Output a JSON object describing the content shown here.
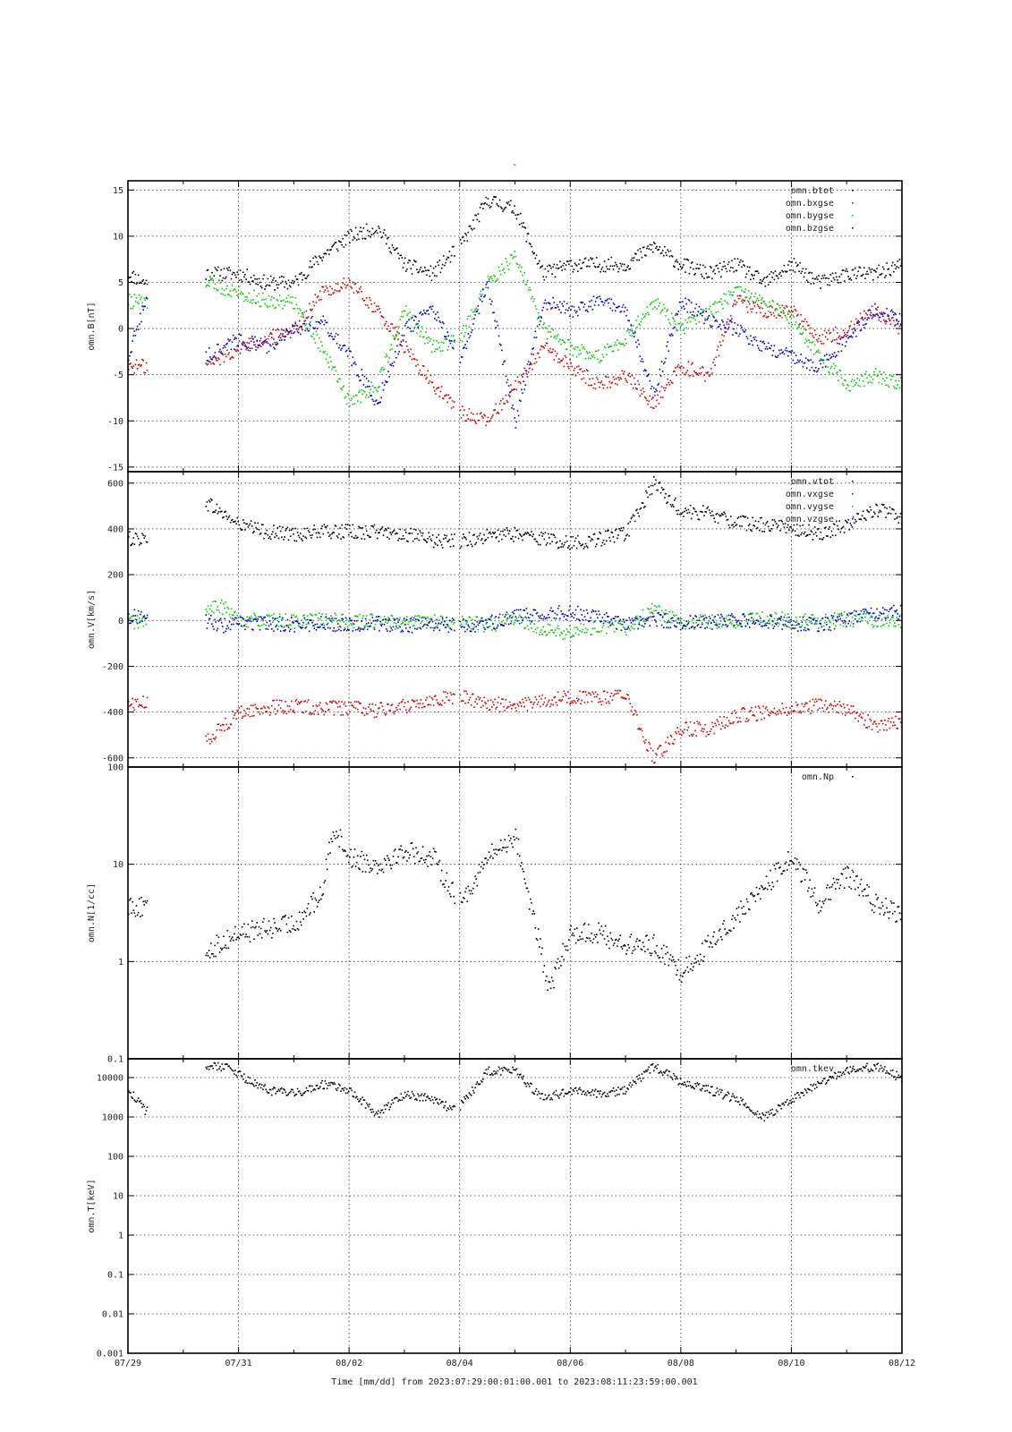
{
  "figure": {
    "title": "-",
    "xlabel": "Time [mm/dd]  from 2023:07:29:00:01:00.001  to  2023:08:11:23:59:00.001"
  },
  "chart_data": [
    {
      "type": "scatter",
      "ylabel": "omn.B[nT]",
      "xlim": [
        0,
        14
      ],
      "ylim": [
        -15.5,
        16
      ],
      "yscale": "linear",
      "yticks": [
        -15,
        -10,
        -5,
        0,
        5,
        10,
        15
      ],
      "ytick_labels": [
        "-15",
        "-10",
        "-5",
        "0",
        "5",
        "10",
        "15"
      ],
      "xticks": [
        0,
        2,
        4,
        6,
        8,
        10,
        12,
        14
      ],
      "xtick_labels": [
        "07/29",
        "07/31",
        "08/02",
        "08/04",
        "08/06",
        "08/08",
        "08/10",
        "08/12"
      ],
      "grid": true,
      "legend": "top-right",
      "data_gaps": [
        [
          0.35,
          1.4
        ],
        [
          5.9,
          6.0
        ]
      ],
      "series": [
        {
          "name": "omn.btot",
          "color": "#000000",
          "x": [
            0,
            0.3,
            1.4,
            2,
            2.5,
            3,
            3.5,
            4,
            4.5,
            5,
            5.5,
            6,
            6.5,
            7,
            7.5,
            8,
            8.5,
            9,
            9.5,
            10,
            10.5,
            11,
            11.5,
            12,
            12.5,
            13,
            13.5,
            14
          ],
          "y": [
            6,
            5,
            6,
            6,
            5,
            5,
            8,
            10,
            11,
            7,
            6,
            9,
            14,
            13,
            6,
            7,
            7,
            7,
            9,
            7,
            6,
            7,
            5,
            7,
            5,
            6,
            6,
            7
          ]
        },
        {
          "name": "omn.bxgse",
          "color": "#cc0000",
          "x": [
            0,
            0.3,
            1.4,
            2,
            2.5,
            3,
            3.5,
            4,
            4.5,
            5,
            5.5,
            6,
            6.5,
            7,
            7.5,
            8,
            8.5,
            9,
            9.5,
            10,
            10.5,
            11,
            11.5,
            12,
            12.5,
            13,
            13.5,
            14
          ],
          "y": [
            -4,
            -4,
            -4,
            -2,
            -1,
            0,
            4,
            5,
            2,
            -2,
            -6,
            -9,
            -10,
            -6,
            -2,
            -4,
            -6,
            -5,
            -8,
            -4,
            -5,
            3,
            2,
            2,
            -1,
            0,
            2,
            0
          ]
        },
        {
          "name": "omn.bygse",
          "color": "#00cc00",
          "x": [
            0,
            0.3,
            1.4,
            2,
            2.5,
            3,
            3.5,
            4,
            4.5,
            5,
            5.5,
            6,
            6.5,
            7,
            7.5,
            8,
            8.5,
            9,
            9.5,
            10,
            10.5,
            11,
            11.5,
            12,
            12.5,
            13,
            13.5,
            14
          ],
          "y": [
            3,
            3,
            5,
            4,
            3,
            3,
            -2,
            -8,
            -6,
            2,
            -2,
            -1,
            5,
            8,
            0,
            -2,
            -3,
            -1,
            3,
            0,
            2,
            4,
            3,
            1,
            -3,
            -6,
            -5,
            -6
          ]
        },
        {
          "name": "omn.bzgse",
          "color": "#0000cc",
          "x": [
            0,
            0.3,
            1.4,
            2,
            2.5,
            3,
            3.5,
            4,
            4.5,
            5,
            5.5,
            6,
            6.5,
            7,
            7.5,
            8,
            8.5,
            9,
            9.5,
            10,
            10.5,
            11,
            11.5,
            12,
            12.5,
            13,
            13.5,
            14
          ],
          "y": [
            -3,
            3,
            -3,
            -1,
            -2,
            0,
            1,
            -3,
            -8,
            0,
            2,
            -3,
            5,
            -10,
            3,
            2,
            3,
            2,
            -7,
            3,
            1,
            0,
            -2,
            -3,
            -4,
            -1,
            2,
            1
          ]
        }
      ]
    },
    {
      "type": "scatter",
      "ylabel": "omn.V[km/s]",
      "xlim": [
        0,
        14
      ],
      "ylim": [
        -640,
        650
      ],
      "yscale": "linear",
      "yticks": [
        -600,
        -400,
        -200,
        0,
        200,
        400,
        600
      ],
      "ytick_labels": [
        "-600",
        "-400",
        "-200",
        "0",
        "200",
        "400",
        "600"
      ],
      "grid": true,
      "legend": "top-right",
      "data_gaps": [
        [
          0.35,
          1.4
        ],
        [
          5.9,
          6.0
        ]
      ],
      "series": [
        {
          "name": "omn.vtot",
          "color": "#000000",
          "x": [
            0,
            0.3,
            1.4,
            1.7,
            2,
            2.5,
            3,
            3.5,
            4,
            4.5,
            5,
            5.5,
            6,
            6.5,
            7,
            7.5,
            8,
            8.5,
            9,
            9.5,
            10,
            10.5,
            11,
            11.5,
            12,
            12.5,
            13,
            13.5,
            14
          ],
          "y": [
            360,
            360,
            520,
            470,
            420,
            390,
            380,
            390,
            390,
            390,
            380,
            350,
            350,
            370,
            380,
            360,
            340,
            360,
            380,
            600,
            480,
            470,
            430,
            420,
            410,
            380,
            420,
            490,
            450
          ]
        },
        {
          "name": "omn.vxgse",
          "color": "#cc0000",
          "x": [
            0,
            0.3,
            1.4,
            1.7,
            2,
            2.5,
            3,
            3.5,
            4,
            4.5,
            5,
            5.5,
            6,
            6.5,
            7,
            7.5,
            8,
            8.5,
            9,
            9.5,
            10,
            10.5,
            11,
            11.5,
            12,
            12.5,
            13,
            13.5,
            14
          ],
          "y": [
            -360,
            -360,
            -520,
            -460,
            -400,
            -380,
            -370,
            -380,
            -380,
            -390,
            -370,
            -340,
            -330,
            -360,
            -370,
            -350,
            -330,
            -340,
            -320,
            -600,
            -470,
            -470,
            -410,
            -400,
            -380,
            -370,
            -380,
            -460,
            -440
          ]
        },
        {
          "name": "omn.vygse",
          "color": "#00cc00",
          "x": [
            0,
            0.3,
            1.4,
            1.7,
            2,
            2.5,
            3,
            3.5,
            4,
            4.5,
            5,
            5.5,
            6,
            6.5,
            7,
            7.5,
            8,
            8.5,
            9,
            9.5,
            10,
            10.5,
            11,
            11.5,
            12,
            12.5,
            13,
            13.5,
            14
          ],
          "y": [
            0,
            -5,
            60,
            60,
            10,
            0,
            0,
            5,
            0,
            0,
            -10,
            0,
            0,
            -20,
            10,
            -40,
            -50,
            -20,
            -30,
            50,
            -10,
            0,
            0,
            20,
            0,
            0,
            10,
            0,
            -10
          ]
        },
        {
          "name": "omn.vzgse",
          "color": "#0000cc",
          "x": [
            0,
            0.3,
            1.4,
            1.7,
            2,
            2.5,
            3,
            3.5,
            4,
            4.5,
            5,
            5.5,
            6,
            6.5,
            7,
            7.5,
            8,
            8.5,
            9,
            9.5,
            10,
            10.5,
            11,
            11.5,
            12,
            12.5,
            13,
            13.5,
            14
          ],
          "y": [
            20,
            20,
            0,
            -20,
            -10,
            -10,
            -15,
            -10,
            -15,
            -10,
            -20,
            -10,
            -20,
            -10,
            20,
            30,
            40,
            20,
            -20,
            10,
            -10,
            -5,
            10,
            -5,
            -10,
            -20,
            10,
            30,
            40
          ]
        }
      ]
    },
    {
      "type": "scatter",
      "ylabel": "omn.N[1/cc]",
      "xlim": [
        0,
        14
      ],
      "ylim": [
        0.1,
        100
      ],
      "yscale": "log",
      "yticks": [
        0.1,
        1,
        10,
        100
      ],
      "ytick_labels": [
        "0.1",
        "1",
        "10",
        "100"
      ],
      "grid": true,
      "legend": "top-right",
      "data_gaps": [
        [
          0.35,
          1.4
        ],
        [
          5.9,
          6.0
        ]
      ],
      "series": [
        {
          "name": "omn.Np",
          "color": "#000000",
          "x": [
            0,
            0.3,
            1.4,
            1.7,
            2,
            2.5,
            3,
            3.5,
            3.7,
            4,
            4.5,
            5,
            5.5,
            5.9,
            6,
            6.5,
            7,
            7.5,
            7.6,
            8,
            8.5,
            9,
            9.5,
            10,
            10.5,
            11,
            11.5,
            12,
            12.5,
            13,
            13.5,
            14
          ],
          "y": [
            4,
            3.5,
            1.3,
            1.6,
            2,
            2.2,
            2.5,
            5,
            25,
            12,
            10,
            14,
            12,
            5,
            4,
            12,
            20,
            1,
            0.5,
            2,
            2,
            1.5,
            1.5,
            0.8,
            1.5,
            3,
            6,
            12,
            4,
            8,
            4,
            3
          ]
        }
      ]
    },
    {
      "type": "scatter",
      "ylabel": "omn.T[keV]",
      "xlim": [
        0,
        14
      ],
      "ylim": [
        0.001,
        30000
      ],
      "yscale": "log",
      "yticks": [
        0.001,
        0.01,
        0.1,
        1,
        10,
        100,
        1000,
        10000
      ],
      "ytick_labels": [
        "0.001",
        "0.01",
        "0.1",
        "1",
        "10",
        "100",
        "1000",
        "10000"
      ],
      "xticks": [
        0,
        2,
        4,
        6,
        8,
        10,
        12,
        14
      ],
      "xtick_labels": [
        "07/29",
        "07/31",
        "08/02",
        "08/04",
        "08/06",
        "08/08",
        "08/10",
        "08/12"
      ],
      "grid": true,
      "legend": "top-right",
      "data_gaps": [
        [
          0.35,
          1.4
        ],
        [
          5.9,
          6.0
        ]
      ],
      "series": [
        {
          "name": "omn.tkev",
          "color": "#000000",
          "x": [
            0,
            0.3,
            1.4,
            1.8,
            2,
            2.5,
            3,
            3.5,
            4,
            4.5,
            5,
            5.5,
            5.9,
            6,
            6.5,
            7,
            7.5,
            8,
            8.5,
            9,
            9.5,
            10,
            10.5,
            11,
            11.5,
            12,
            12.5,
            13,
            13.5,
            14
          ],
          "y": [
            5000,
            1500,
            20000,
            20000,
            12000,
            5000,
            4000,
            7000,
            5000,
            1200,
            4000,
            3000,
            1500,
            2000,
            15000,
            15000,
            3000,
            5000,
            4000,
            5000,
            20000,
            8000,
            5000,
            3000,
            1000,
            3000,
            8000,
            15000,
            20000,
            10000
          ]
        }
      ]
    }
  ]
}
